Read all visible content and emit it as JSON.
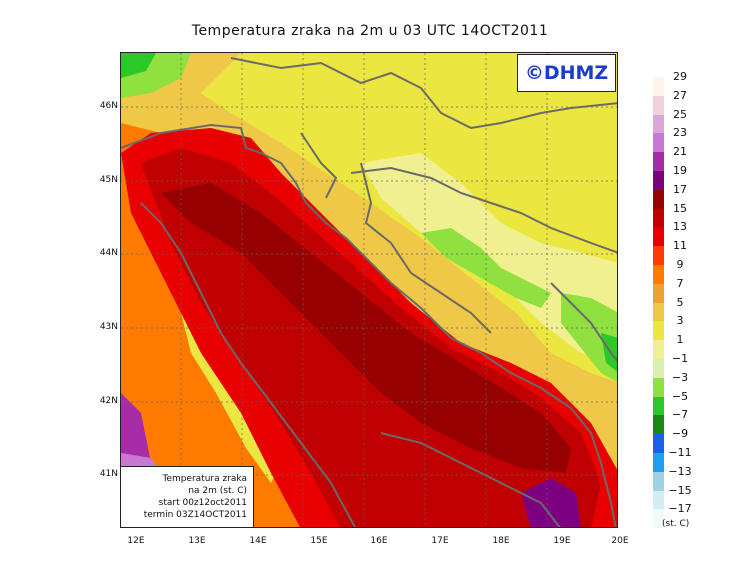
{
  "title": "Temperatura zraka na 2m u 03 UTC 14OCT2011",
  "badge": "©DHMZ",
  "info": {
    "line1": "Temperatura zraka",
    "line2": "na 2m (st. C)",
    "line3": "start 00z12oct2011",
    "line4": "termin 03Z14OCT2011"
  },
  "axes": {
    "lat_labels": [
      "46N",
      "45N",
      "44N",
      "43N",
      "42N",
      "41N"
    ],
    "lon_labels": [
      "12E",
      "13E",
      "14E",
      "15E",
      "16E",
      "17E",
      "18E",
      "19E",
      "20E"
    ]
  },
  "colorbar": {
    "unit": "(st. C)",
    "labels": [
      "29",
      "27",
      "25",
      "23",
      "21",
      "19",
      "17",
      "15",
      "13",
      "11",
      "9",
      "7",
      "5",
      "3",
      "1",
      "−1",
      "−3",
      "−5",
      "−7",
      "−9",
      "−11",
      "−13",
      "−15",
      "−17"
    ],
    "colors": [
      "#fff4ec",
      "#eed2de",
      "#dca6d8",
      "#c878d0",
      "#a82ca8",
      "#7c0080",
      "#960000",
      "#c00000",
      "#e80000",
      "#ff3c00",
      "#ff7a00",
      "#f0a030",
      "#f0c848",
      "#ece640",
      "#f0f090",
      "#d8f0b0",
      "#90e040",
      "#2cc828",
      "#148c14",
      "#1860e8",
      "#1ea0f0",
      "#a0d0e4",
      "#d0eef4",
      "#f0fcfc"
    ]
  },
  "colors": {
    "sea_warm": "#960000",
    "sea": "#c00000",
    "coast": "#e80000",
    "land_mild": "#f0c848",
    "land_cool": "#ece640",
    "highland": "#90e040",
    "border": "#6a6a6a"
  }
}
